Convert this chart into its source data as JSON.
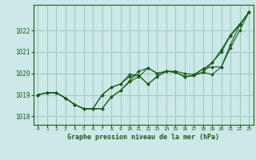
{
  "title": "Graphe pression niveau de la mer (hPa)",
  "bg_color": "#cce8e8",
  "grid_color": "#99ccbb",
  "line_color": "#1a5c1a",
  "marker_color": "#1a5c1a",
  "x_ticks": [
    0,
    1,
    2,
    3,
    4,
    5,
    6,
    7,
    8,
    9,
    10,
    11,
    12,
    13,
    14,
    15,
    16,
    17,
    18,
    19,
    20,
    21,
    22,
    23
  ],
  "y_ticks": [
    1018,
    1019,
    1020,
    1021,
    1022
  ],
  "ylim": [
    1017.6,
    1023.2
  ],
  "xlim": [
    -0.5,
    23.5
  ],
  "series": [
    [
      1019.0,
      1019.1,
      1019.1,
      1018.85,
      1018.55,
      1018.35,
      1018.35,
      1018.35,
      1018.9,
      1019.2,
      1019.6,
      1019.85,
      1020.25,
      1020.0,
      1020.1,
      1020.05,
      1019.85,
      1019.9,
      1020.05,
      1020.5,
      1021.0,
      1021.75,
      1022.25,
      1022.85
    ],
    [
      1019.0,
      1019.1,
      1019.1,
      1018.85,
      1018.55,
      1018.35,
      1018.35,
      1019.0,
      1019.35,
      1019.5,
      1019.85,
      1019.9,
      1019.5,
      1019.85,
      1020.1,
      1020.05,
      1019.85,
      1019.9,
      1020.05,
      1019.95,
      1020.3,
      1021.2,
      1022.0,
      1022.85
    ],
    [
      1019.0,
      1019.1,
      1019.1,
      1018.85,
      1018.55,
      1018.35,
      1018.35,
      1019.0,
      1019.35,
      1019.5,
      1019.95,
      1019.9,
      1019.5,
      1019.85,
      1020.1,
      1020.1,
      1020.0,
      1019.95,
      1020.2,
      1020.3,
      1020.3,
      1021.35,
      1022.25,
      1022.85
    ],
    [
      1019.0,
      1019.1,
      1019.1,
      1018.85,
      1018.55,
      1018.35,
      1018.35,
      1018.35,
      1018.9,
      1019.2,
      1019.65,
      1020.1,
      1020.25,
      1020.0,
      1020.1,
      1020.05,
      1019.85,
      1019.9,
      1020.2,
      1020.5,
      1021.1,
      1021.8,
      1022.3,
      1022.85
    ]
  ]
}
